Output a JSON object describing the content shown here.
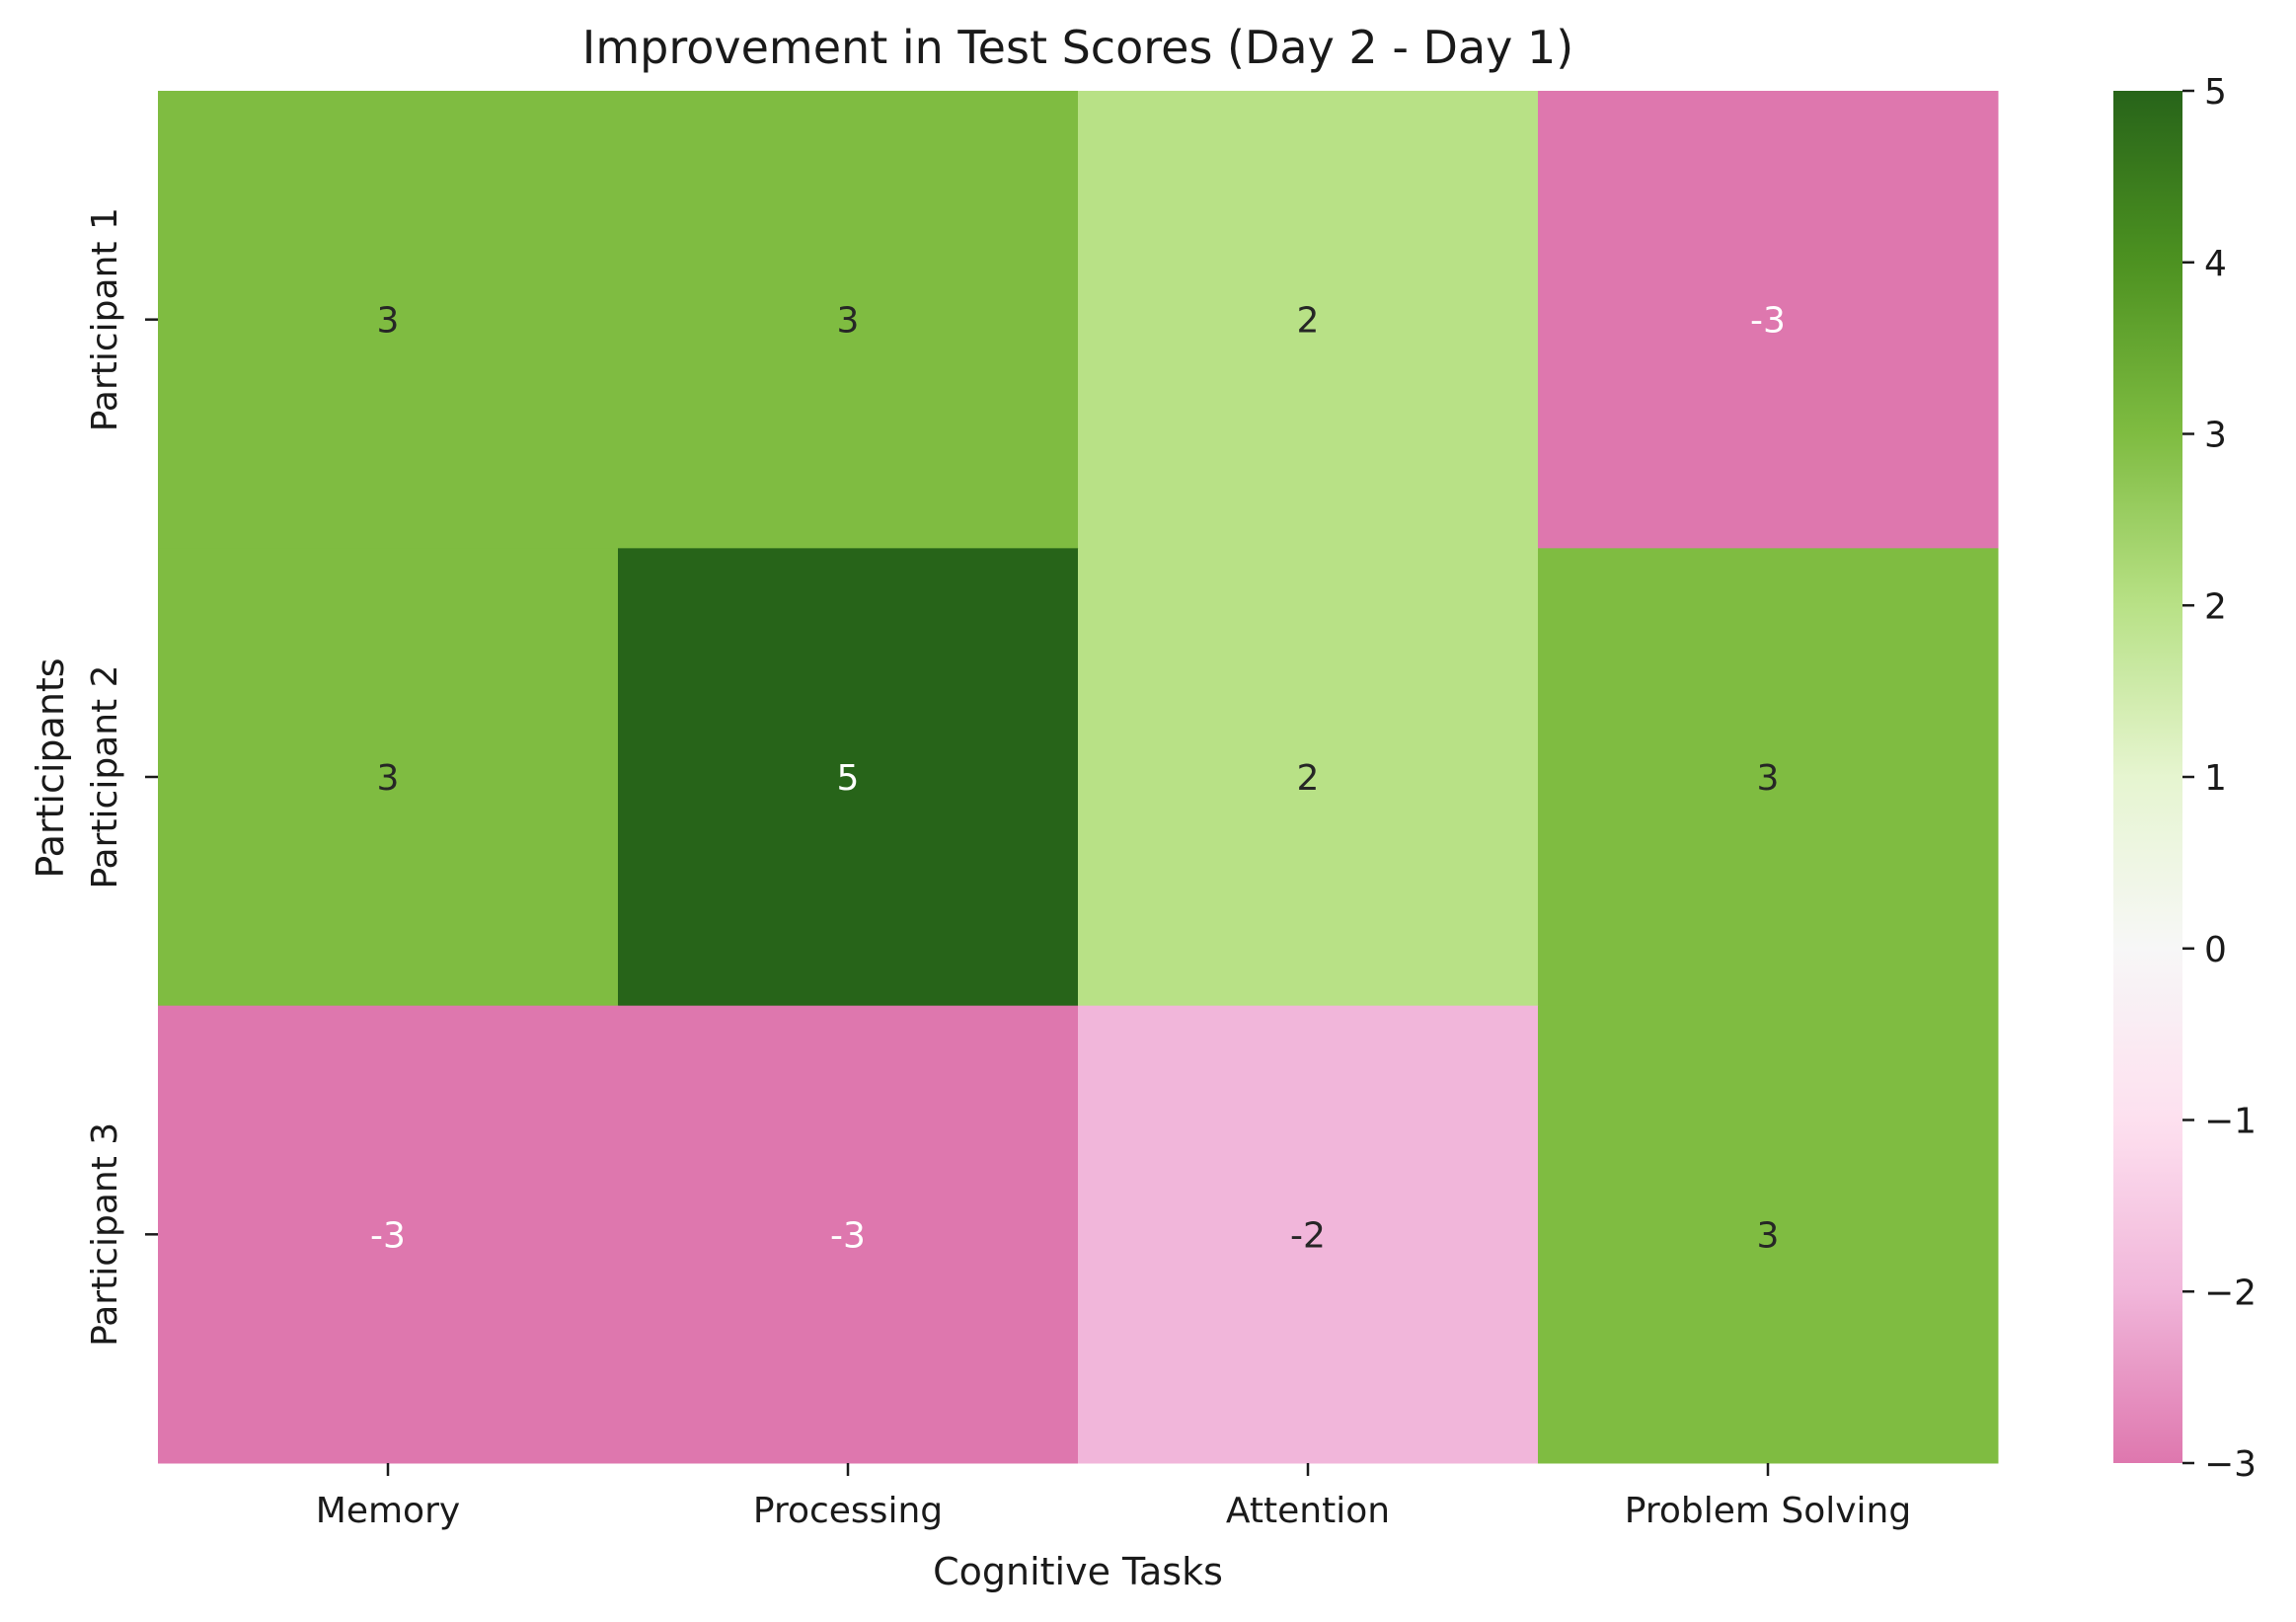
{
  "chart_data": {
    "type": "heatmap",
    "title": "Improvement in Test Scores (Day 2 - Day 1)",
    "xlabel": "Cognitive Tasks",
    "ylabel": "Participants",
    "columns": [
      "Memory",
      "Processing",
      "Attention",
      "Problem Solving"
    ],
    "rows": [
      "Participant 1",
      "Participant 2",
      "Participant 3"
    ],
    "values": [
      [
        3,
        3,
        2,
        -3
      ],
      [
        3,
        5,
        2,
        3
      ],
      [
        -3,
        -3,
        -2,
        3
      ]
    ],
    "colorbar": {
      "range": [
        -3,
        5
      ],
      "ticks": [
        5,
        4,
        3,
        2,
        1,
        0,
        -1,
        -2,
        -3
      ],
      "tick_labels": [
        "5",
        "4",
        "3",
        "2",
        "1",
        "0",
        "−1",
        "−2",
        "−3"
      ]
    },
    "colormap": {
      "name": "PiYG",
      "stops": [
        "#8e0152",
        "#c51b7d",
        "#de77ae",
        "#f1b6da",
        "#fde0ef",
        "#f7f7f7",
        "#e6f5d0",
        "#b8e186",
        "#7fbc41",
        "#4d9221",
        "#276419"
      ]
    },
    "annotation_colors": {
      "light": "#ffffff",
      "dark": "#262626"
    }
  }
}
